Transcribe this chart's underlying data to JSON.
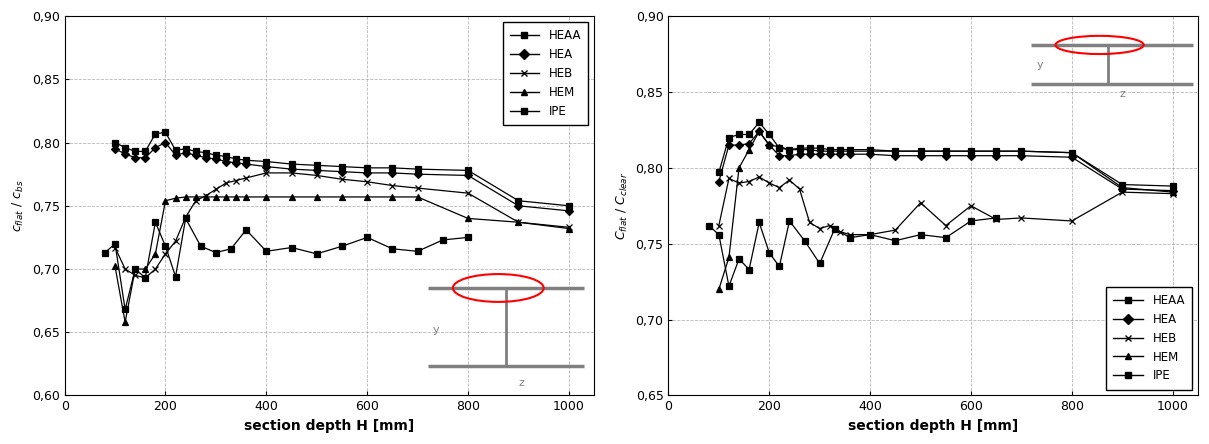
{
  "xlabel": "section depth H [mm]",
  "left_ylabel": "c_flat / c_bs",
  "right_ylabel": "C_flat / C_clear",
  "ylim_left": [
    0.6,
    0.9
  ],
  "ylim_right": [
    0.65,
    0.9
  ],
  "xlim": [
    0,
    1050
  ],
  "yticks_left": [
    0.6,
    0.65,
    0.7,
    0.75,
    0.8,
    0.85,
    0.9
  ],
  "ytick_labels_left": [
    "0,60",
    "0,65",
    "0,70",
    "0,75",
    "0,80",
    "0,85",
    "0,90"
  ],
  "yticks_right": [
    0.65,
    0.7,
    0.75,
    0.8,
    0.85,
    0.9
  ],
  "ytick_labels_right": [
    "0,65",
    "0,70",
    "0,75",
    "0,80",
    "0,85",
    "0,90"
  ],
  "xticks": [
    0,
    200,
    400,
    600,
    800,
    1000
  ],
  "HEAA_x1": [
    100,
    120,
    140,
    160,
    180,
    200,
    220,
    240,
    260,
    280,
    300,
    320,
    340,
    360,
    400,
    450,
    500,
    550,
    600,
    650,
    700,
    800,
    900,
    1000
  ],
  "HEAA_y1": [
    0.8,
    0.796,
    0.793,
    0.793,
    0.807,
    0.808,
    0.794,
    0.795,
    0.793,
    0.792,
    0.79,
    0.789,
    0.787,
    0.786,
    0.785,
    0.783,
    0.782,
    0.781,
    0.78,
    0.78,
    0.779,
    0.778,
    0.754,
    0.75
  ],
  "HEA_x1": [
    100,
    120,
    140,
    160,
    180,
    200,
    220,
    240,
    260,
    280,
    300,
    320,
    340,
    360,
    400,
    450,
    500,
    550,
    600,
    650,
    700,
    800,
    900,
    1000
  ],
  "HEA_y1": [
    0.795,
    0.791,
    0.788,
    0.788,
    0.796,
    0.8,
    0.79,
    0.792,
    0.79,
    0.788,
    0.787,
    0.785,
    0.784,
    0.783,
    0.781,
    0.779,
    0.778,
    0.777,
    0.776,
    0.776,
    0.775,
    0.774,
    0.75,
    0.746
  ],
  "HEB_x1": [
    100,
    120,
    140,
    160,
    180,
    200,
    220,
    240,
    260,
    280,
    300,
    320,
    340,
    360,
    400,
    450,
    500,
    550,
    600,
    650,
    700,
    800,
    900,
    1000
  ],
  "HEB_y1": [
    0.717,
    0.7,
    0.695,
    0.693,
    0.7,
    0.712,
    0.722,
    0.741,
    0.754,
    0.758,
    0.763,
    0.768,
    0.77,
    0.772,
    0.776,
    0.776,
    0.774,
    0.771,
    0.769,
    0.766,
    0.764,
    0.76,
    0.737,
    0.733
  ],
  "HEM_x1": [
    100,
    120,
    140,
    160,
    180,
    200,
    220,
    240,
    260,
    280,
    300,
    320,
    340,
    360,
    400,
    450,
    500,
    550,
    600,
    650,
    700,
    800,
    900,
    1000
  ],
  "HEM_y1": [
    0.702,
    0.658,
    0.7,
    0.7,
    0.712,
    0.754,
    0.756,
    0.757,
    0.757,
    0.757,
    0.757,
    0.757,
    0.757,
    0.757,
    0.757,
    0.757,
    0.757,
    0.757,
    0.757,
    0.757,
    0.757,
    0.74,
    0.737,
    0.732
  ],
  "IPE_x1": [
    80,
    100,
    120,
    140,
    160,
    180,
    200,
    220,
    240,
    270,
    300,
    330,
    360,
    400,
    450,
    500,
    550,
    600,
    650,
    700,
    750,
    800
  ],
  "IPE_y1": [
    0.713,
    0.72,
    0.668,
    0.7,
    0.693,
    0.737,
    0.718,
    0.694,
    0.74,
    0.718,
    0.713,
    0.716,
    0.731,
    0.714,
    0.717,
    0.712,
    0.718,
    0.725,
    0.716,
    0.714,
    0.723,
    0.725
  ],
  "HEAA_x2": [
    100,
    120,
    140,
    160,
    180,
    200,
    220,
    240,
    260,
    280,
    300,
    320,
    340,
    360,
    400,
    450,
    500,
    550,
    600,
    650,
    700,
    800,
    900,
    1000
  ],
  "HEAA_y2": [
    0.797,
    0.82,
    0.822,
    0.822,
    0.83,
    0.822,
    0.813,
    0.812,
    0.813,
    0.813,
    0.813,
    0.812,
    0.812,
    0.812,
    0.812,
    0.811,
    0.811,
    0.811,
    0.811,
    0.811,
    0.811,
    0.81,
    0.789,
    0.788
  ],
  "HEA_x2": [
    100,
    120,
    140,
    160,
    180,
    200,
    220,
    240,
    260,
    280,
    300,
    320,
    340,
    360,
    400,
    450,
    500,
    550,
    600,
    650,
    700,
    800,
    900,
    1000
  ],
  "HEA_y2": [
    0.791,
    0.815,
    0.815,
    0.816,
    0.824,
    0.815,
    0.808,
    0.808,
    0.809,
    0.809,
    0.809,
    0.809,
    0.809,
    0.809,
    0.809,
    0.808,
    0.808,
    0.808,
    0.808,
    0.808,
    0.808,
    0.807,
    0.786,
    0.785
  ],
  "HEB_x2": [
    100,
    120,
    140,
    160,
    180,
    200,
    220,
    240,
    260,
    280,
    300,
    320,
    340,
    360,
    400,
    450,
    500,
    550,
    600,
    650,
    700,
    800,
    900,
    1000
  ],
  "HEB_y2": [
    0.762,
    0.793,
    0.79,
    0.791,
    0.794,
    0.79,
    0.787,
    0.792,
    0.786,
    0.764,
    0.76,
    0.762,
    0.758,
    0.756,
    0.756,
    0.759,
    0.777,
    0.762,
    0.775,
    0.766,
    0.767,
    0.765,
    0.784,
    0.783
  ],
  "HEM_x2": [
    100,
    120,
    140,
    160,
    180,
    200,
    220,
    240,
    260,
    280,
    300,
    320,
    340,
    360,
    400,
    450,
    500,
    550,
    600,
    650,
    700,
    800,
    900,
    1000
  ],
  "HEM_y2": [
    0.72,
    0.741,
    0.8,
    0.812,
    0.824,
    0.815,
    0.814,
    0.812,
    0.812,
    0.812,
    0.811,
    0.811,
    0.811,
    0.811,
    0.811,
    0.811,
    0.811,
    0.811,
    0.811,
    0.811,
    0.811,
    0.81,
    0.787,
    0.784
  ],
  "IPE_x2": [
    80,
    100,
    120,
    140,
    160,
    180,
    200,
    220,
    240,
    270,
    300,
    330,
    360,
    400,
    450,
    500,
    550,
    600,
    650
  ],
  "IPE_y2": [
    0.762,
    0.756,
    0.722,
    0.74,
    0.733,
    0.764,
    0.744,
    0.735,
    0.765,
    0.752,
    0.737,
    0.76,
    0.754,
    0.756,
    0.752,
    0.756,
    0.754,
    0.765,
    0.767
  ],
  "line_color": "#000000",
  "bg_color": "#ffffff",
  "grid_color": "#999999"
}
